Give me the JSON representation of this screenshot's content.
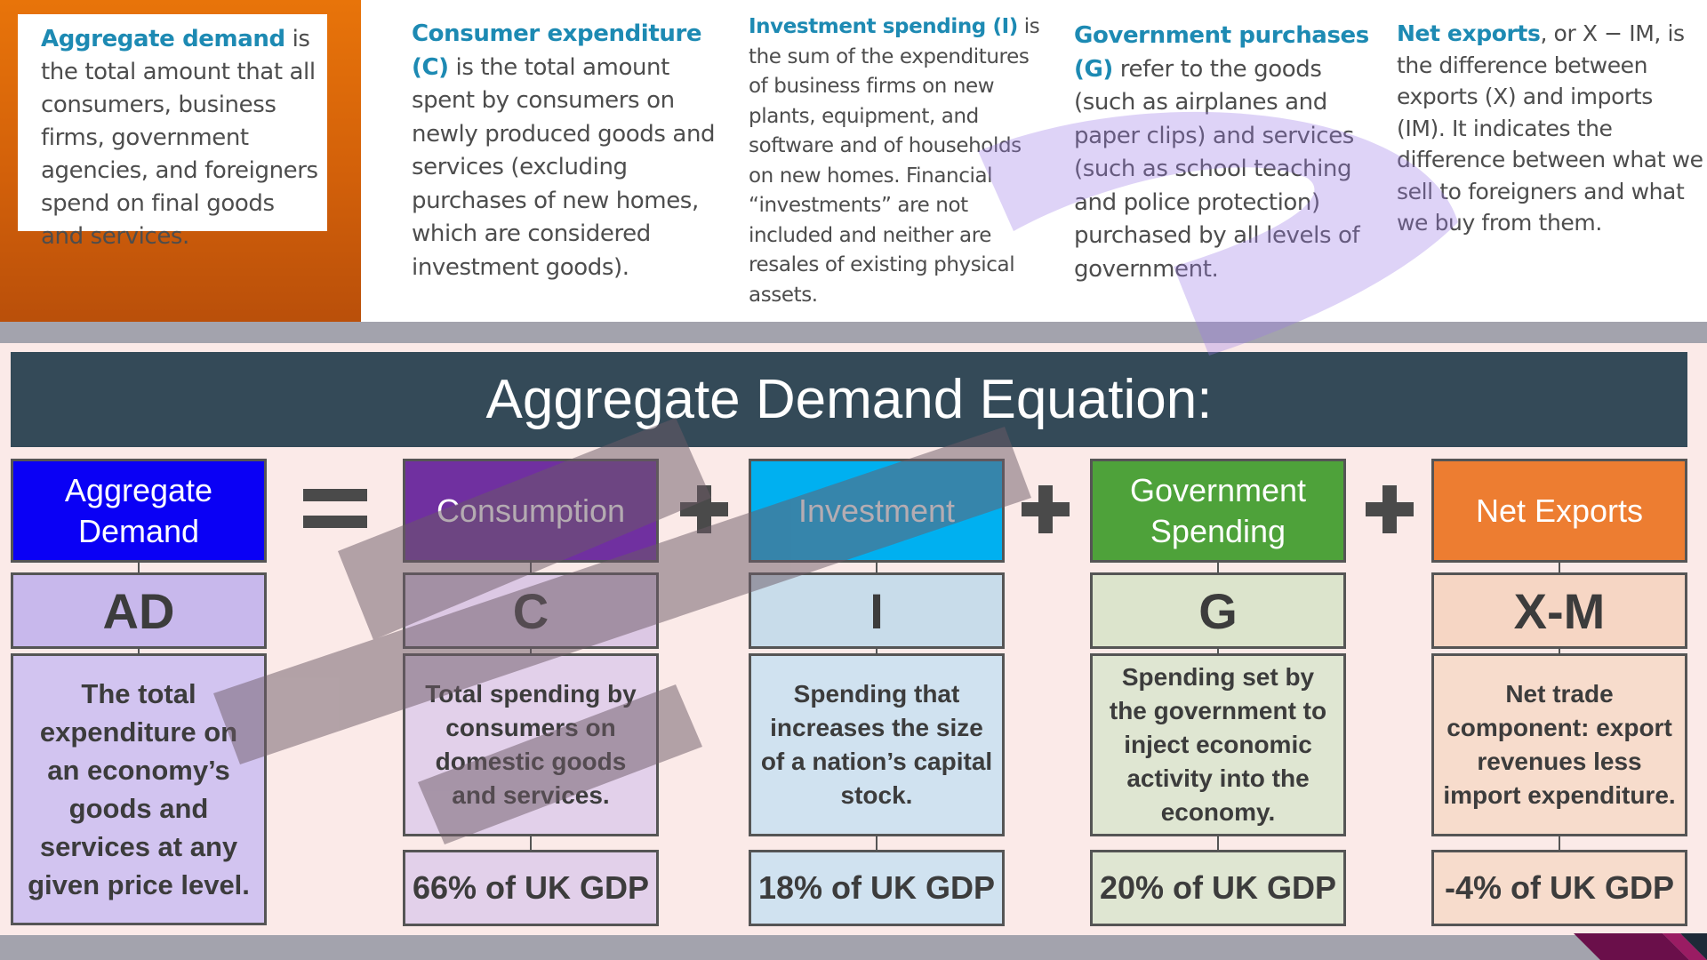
{
  "definitions": {
    "aggregate_demand": {
      "term": "Aggregate demand",
      "text": "is the total amount that all consumers, business firms, government agencies, and foreigners spend on final goods and services."
    },
    "consumer": {
      "term": "Consumer expenditure (C)",
      "text": " is the total amount spent by consumers on newly produced goods and services (excluding purchases of new homes, which are considered investment goods)."
    },
    "investment": {
      "term": "Investment spending (I)",
      "text": " is the sum of the expenditures of business firms on new plants, equipment, and software and of households on new homes. Financial “investments” are not included and neither are resales of existing physical assets."
    },
    "government": {
      "term": "Government purchases (G)",
      "text": " refer to the goods (such as airplanes and paper clips) and services (such as school teaching and police protection) purchased by all levels of government."
    },
    "net_exports": {
      "term": "Net exports",
      "text": ", or X − IM, is the difference between exports (X) and imports (IM). It indicates the difference between what we sell to foreigners and what we buy from them."
    }
  },
  "equation": {
    "title": "Aggregate Demand Equation:",
    "columns": [
      {
        "heading": "Aggregate Demand",
        "abbr": "AD",
        "description": "The total expenditure on an economy’s goods and services at any given price level.",
        "gdp": "",
        "colors": {
          "head": "#0a00f5",
          "abbr": "#c8b8ec",
          "desc": "#d2c4f0"
        }
      },
      {
        "heading": "Consumption",
        "abbr": "C",
        "description": "Total spending by consumers on domestic goods and services.",
        "gdp": "66% of UK GDP",
        "colors": {
          "head": "#7030a0",
          "abbr": "#dcc8e4",
          "desc": "#e2d0ea"
        }
      },
      {
        "heading": "Investment",
        "abbr": "I",
        "description": "Spending that increases the size of a nation’s capital stock.",
        "gdp": "18% of UK GDP",
        "colors": {
          "head": "#00b0f0",
          "abbr": "#c8dcea",
          "desc": "#d0e2f0"
        }
      },
      {
        "heading": "Government Spending",
        "abbr": "G",
        "description": "Spending set by the government to inject economic activity into the economy.",
        "gdp": "20% of UK GDP",
        "colors": {
          "head": "#4ea23a",
          "abbr": "#dce4cc",
          "desc": "#dfe6d2"
        }
      },
      {
        "heading": "Net Exports",
        "abbr": "X-M",
        "description": "Net trade component: export revenues less import expenditure.",
        "gdp": "-4% of UK GDP",
        "colors": {
          "head": "#ed7d31",
          "abbr": "#f6d6c4",
          "desc": "#f7dccc"
        }
      }
    ]
  },
  "colors": {
    "title_bar": "#344a58",
    "orange_panel": "#e8740a",
    "term_blue": "#1d8ab3",
    "band_grey": "#a3a3ad",
    "page_bg": "#fbeae8"
  }
}
